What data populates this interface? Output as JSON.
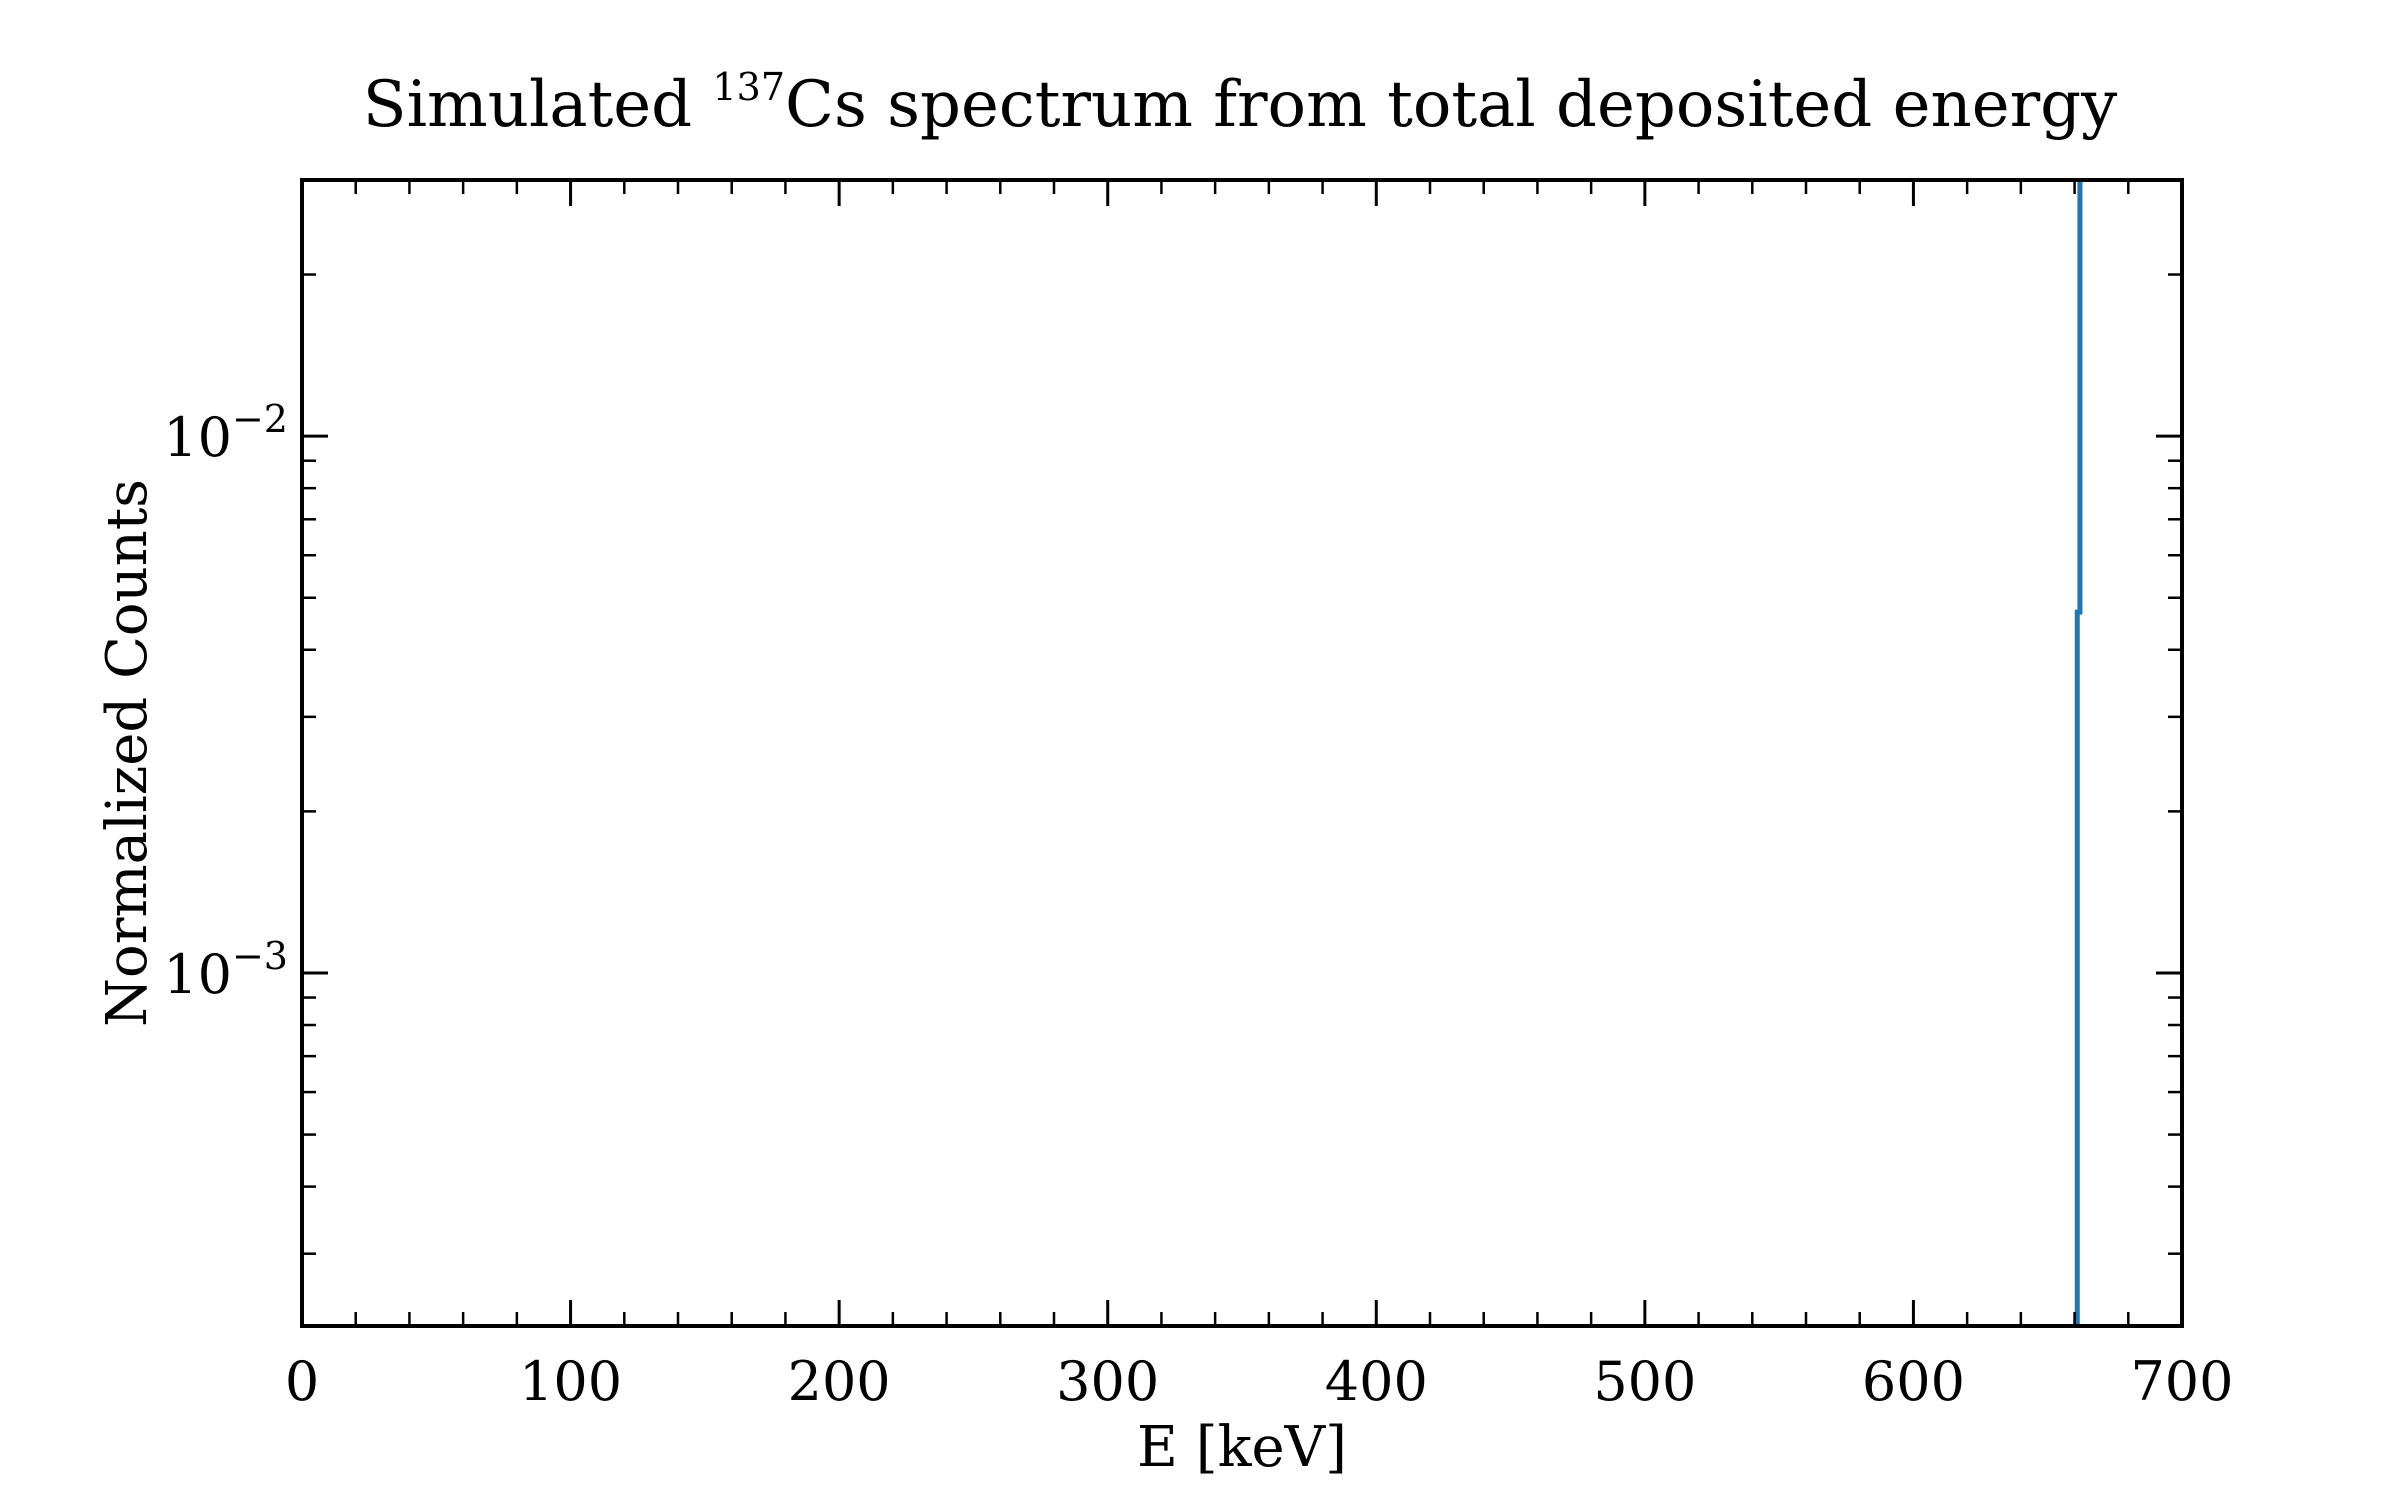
{
  "chart_data": {
    "type": "line",
    "title": {
      "prefix": "Simulated ",
      "superscript": "137",
      "suffix": "Cs spectrum from total deposited energy"
    },
    "xlabel": "E [keV]",
    "ylabel": "Normalized Counts",
    "xscale": "linear",
    "yscale": "log",
    "xlim": [
      0,
      700
    ],
    "ylim": [
      0.00022,
      0.03
    ],
    "xticks": [
      {
        "value": 0,
        "label": "0"
      },
      {
        "value": 100,
        "label": "100"
      },
      {
        "value": 200,
        "label": "200"
      },
      {
        "value": 300,
        "label": "300"
      },
      {
        "value": 400,
        "label": "400"
      },
      {
        "value": 500,
        "label": "500"
      },
      {
        "value": 600,
        "label": "600"
      },
      {
        "value": 700,
        "label": "700"
      }
    ],
    "yticks": [
      {
        "value": 0.01,
        "base": "10",
        "exponent": "−2"
      },
      {
        "value": 0.001,
        "base": "10",
        "exponent": "−3"
      }
    ],
    "grid": false,
    "legend": "none",
    "series": [
      {
        "color": "#1f77b4",
        "drawstyle": "steps",
        "x": [
          661,
          661,
          662,
          662
        ],
        "y": [
          0.00022,
          0.0047,
          0.0047,
          0.03
        ]
      }
    ]
  }
}
